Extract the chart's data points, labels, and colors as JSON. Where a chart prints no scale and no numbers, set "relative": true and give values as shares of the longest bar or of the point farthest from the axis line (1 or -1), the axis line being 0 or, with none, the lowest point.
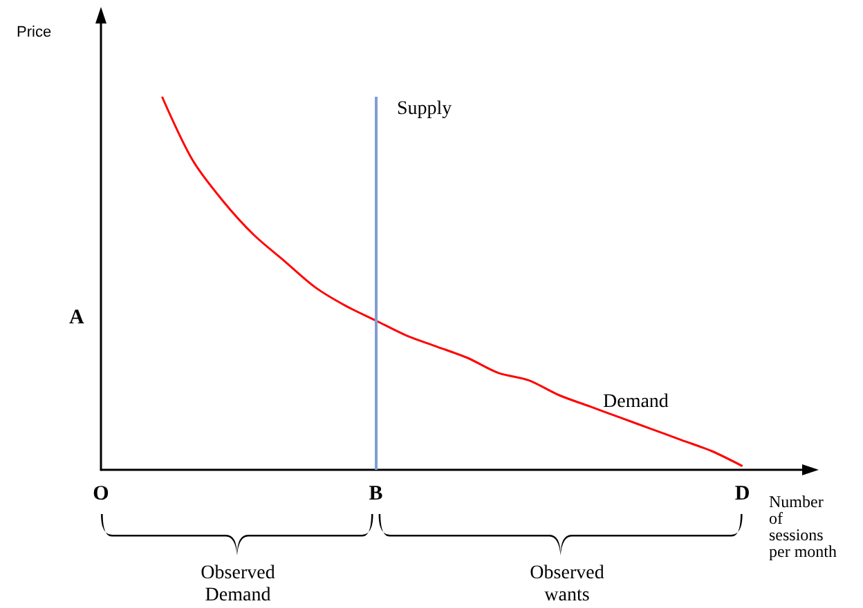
{
  "chart_data": {
    "type": "line",
    "relative": true,
    "ylabel": "Price",
    "xlabel": "Number of sessions per month",
    "categories": [
      "O",
      null,
      null,
      null,
      null,
      null,
      null,
      null,
      null,
      "B",
      null,
      null,
      null,
      null,
      null,
      null,
      null,
      null,
      null,
      null,
      null,
      "D",
      null,
      null
    ],
    "series": [
      {
        "name": "Demand",
        "color": "#ff0000",
        "values": [
          null,
          null,
          1.0,
          0.83,
          0.72,
          0.63,
          0.56,
          0.49,
          0.44,
          0.4,
          0.36,
          0.33,
          0.3,
          0.26,
          0.24,
          0.2,
          0.17,
          0.14,
          0.11,
          0.08,
          0.05,
          0.01,
          null,
          null
        ]
      }
    ],
    "ref_lines": [
      {
        "axis": "x",
        "value": "B",
        "label": "Supply",
        "color": "#7f9fd0"
      }
    ],
    "annotations": [
      "A",
      "Observed Demand",
      "Observed wants"
    ],
    "marker": "none",
    "grid": false,
    "legend": false
  }
}
